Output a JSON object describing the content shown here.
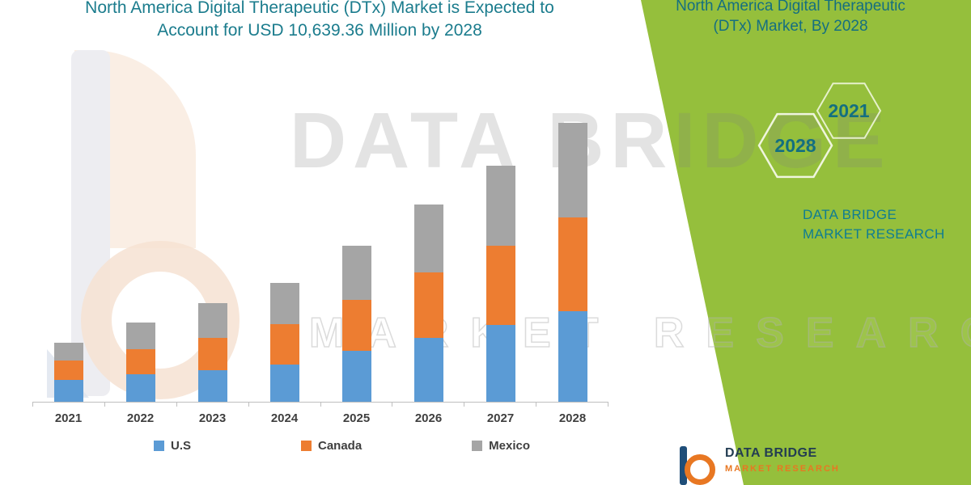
{
  "header": {
    "title_line1": "North America Digital Therapeutic (DTx) Market is Expected to",
    "title_line2": "Account for USD 10,639.36 Million by 2028"
  },
  "side_panel": {
    "heading": "North America Digital Therapeutic (DTx) Market, By 2028",
    "hexagons": [
      "2028",
      "2021"
    ],
    "brand": "DATA BRIDGE MARKET RESEARCH"
  },
  "watermark": {
    "line1": "DATA BRIDGE",
    "line2": "MARKET RESEARCH"
  },
  "footer": {
    "logo_text": "DATA BRIDGE",
    "logo_subtext": "MARKET RESEARCH"
  },
  "colors": {
    "accent_green": "#95bf3c",
    "title_teal": "#1b7c8d",
    "us_blue": "#5b9bd5",
    "canada_orange": "#ed7d31",
    "mexico_gray": "#a5a5a5"
  },
  "chart_data": {
    "type": "bar",
    "stacked": true,
    "title": "North America Digital Therapeutic (DTx) Market is Expected to Account for USD 10,639.36 Million by 2028",
    "categories": [
      "2021",
      "2022",
      "2023",
      "2024",
      "2025",
      "2026",
      "2027",
      "2028"
    ],
    "series": [
      {
        "name": "U.S",
        "color": "#5b9bd5",
        "values": [
          845,
          1035,
          1190,
          1410,
          1940,
          2440,
          2940,
          3440
        ]
      },
      {
        "name": "Canada",
        "color": "#ed7d31",
        "values": [
          720,
          970,
          1250,
          1563,
          1940,
          2505,
          3005,
          3600
        ]
      },
      {
        "name": "Mexico",
        "color": "#a5a5a5",
        "values": [
          688,
          1030,
          1315,
          1564,
          2065,
          2565,
          3067,
          3599.36
        ]
      }
    ],
    "totals": [
      2253,
      3035,
      3755,
      4537,
      5945,
      7510,
      9012,
      10639.36
    ],
    "value_note": "USD Million; segment values estimated from bar heights, 2028 total stated as 10,639.36",
    "xlabel": "",
    "ylabel": "",
    "ylim": [
      0,
      11000
    ],
    "grid": false,
    "legend_position": "bottom"
  }
}
